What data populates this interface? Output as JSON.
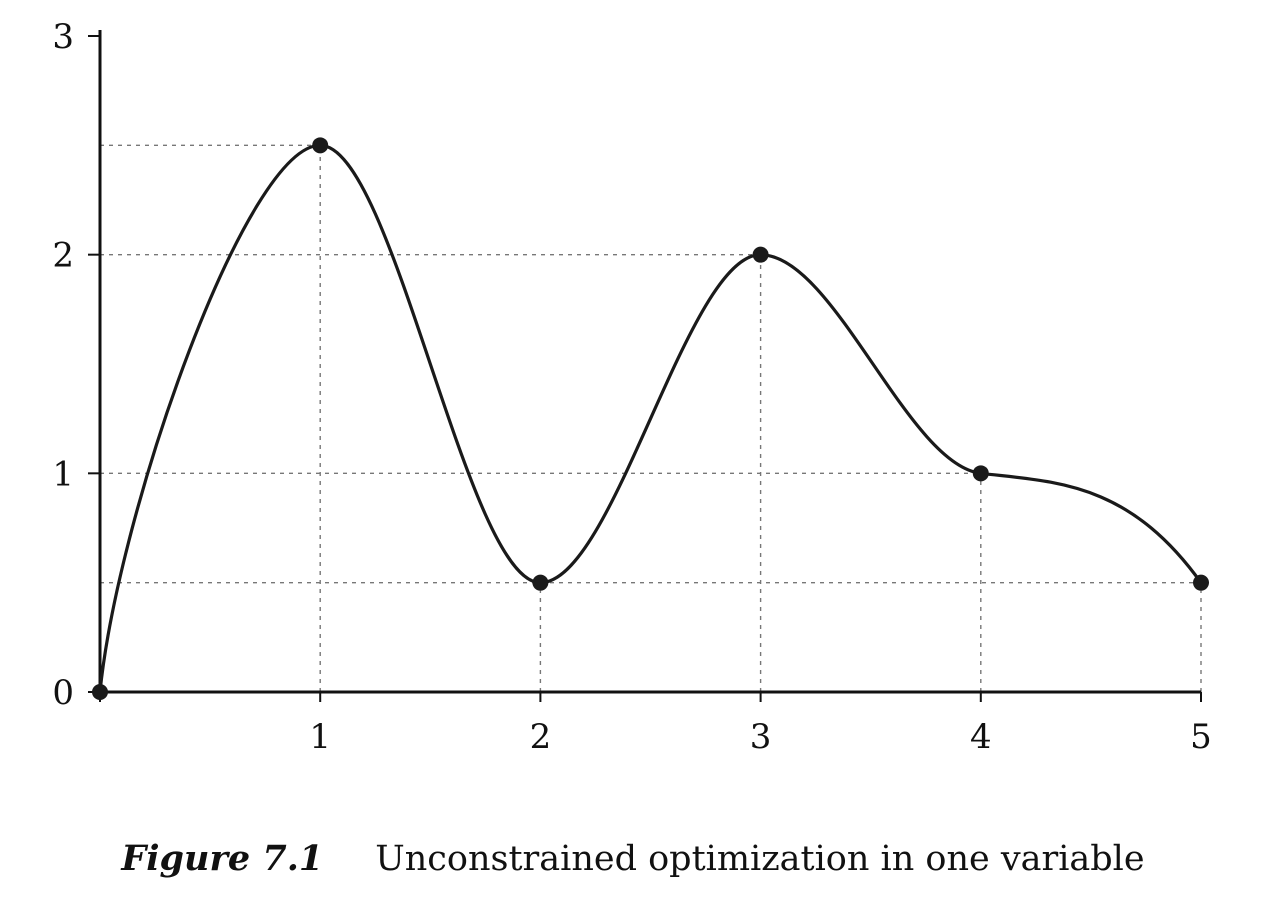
{
  "chart_data": {
    "type": "line",
    "x": [
      0,
      1,
      2,
      3,
      4,
      5
    ],
    "series": [
      {
        "values": [
          0,
          2.5,
          0.5,
          2,
          1,
          0.5
        ]
      }
    ],
    "marked_points": [
      {
        "x": 0,
        "y": 0
      },
      {
        "x": 1,
        "y": 2.5
      },
      {
        "x": 2,
        "y": 0.5
      },
      {
        "x": 3,
        "y": 2
      },
      {
        "x": 4,
        "y": 1
      },
      {
        "x": 5,
        "y": 0.5
      }
    ],
    "xlim": [
      0,
      5
    ],
    "ylim": [
      0,
      3
    ],
    "xticks": [
      "1",
      "2",
      "3",
      "4",
      "5"
    ],
    "yticks": [
      "0",
      "1",
      "2",
      "3"
    ],
    "reference_lines_y": [
      0.5,
      1,
      2,
      2.5
    ],
    "reference_lines_x": [
      1,
      2,
      3,
      4,
      5
    ],
    "grid": false,
    "line_color": "#1a1a1a",
    "reference_line_color": "#777777"
  },
  "caption": {
    "label": "Figure 7.1",
    "text": "Unconstrained optimization in one variable"
  }
}
